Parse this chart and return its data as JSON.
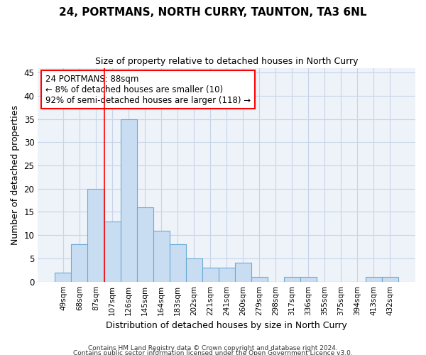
{
  "title": "24, PORTMANS, NORTH CURRY, TAUNTON, TA3 6NL",
  "subtitle": "Size of property relative to detached houses in North Curry",
  "xlabel": "Distribution of detached houses by size in North Curry",
  "ylabel": "Number of detached properties",
  "categories": [
    "49sqm",
    "68sqm",
    "87sqm",
    "107sqm",
    "126sqm",
    "145sqm",
    "164sqm",
    "183sqm",
    "202sqm",
    "221sqm",
    "241sqm",
    "260sqm",
    "279sqm",
    "298sqm",
    "317sqm",
    "336sqm",
    "355sqm",
    "375sqm",
    "394sqm",
    "413sqm",
    "432sqm"
  ],
  "bar_values": [
    2,
    8,
    20,
    13,
    35,
    16,
    11,
    8,
    5,
    3,
    3,
    4,
    1,
    0,
    1,
    1,
    0,
    0,
    0,
    1,
    1
  ],
  "bar_color": "#c9ddf2",
  "bar_edge_color": "#6aaad4",
  "grid_color": "#c8d4e8",
  "background_color": "#eef2f9",
  "vline_x": 2.5,
  "annotation_box_text_line1": "24 PORTMANS: 88sqm",
  "annotation_box_text_line2": "← 8% of detached houses are smaller (10)",
  "annotation_box_text_line3": "92% of semi-detached houses are larger (118) →",
  "ylim": [
    0,
    46
  ],
  "yticks": [
    0,
    5,
    10,
    15,
    20,
    25,
    30,
    35,
    40,
    45
  ],
  "footer_line1": "Contains HM Land Registry data © Crown copyright and database right 2024.",
  "footer_line2": "Contains public sector information licensed under the Open Government Licence v3.0."
}
